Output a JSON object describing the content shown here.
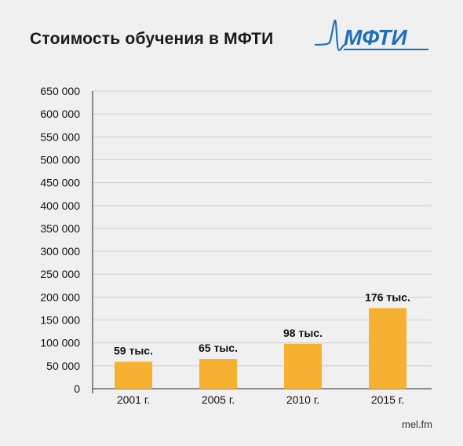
{
  "title": "Стоимость обучения в МФТИ",
  "logo": {
    "text": "МФТИ",
    "icon": "mipt-logo-pulse-icon",
    "color": "#1f6fc0"
  },
  "source": "mel.fm",
  "colors": {
    "bar": "#f6b133",
    "grid": "#cfcfcf",
    "axis": "#222222",
    "text": "#111111"
  },
  "chart_data": {
    "type": "bar",
    "title": "Стоимость обучения в МФТИ",
    "xlabel": "",
    "ylabel": "",
    "categories": [
      "2001 г.",
      "2005 г.",
      "2010 г.",
      "2015 г."
    ],
    "values": [
      59000,
      65000,
      98000,
      176000
    ],
    "data_labels": [
      "59 тыс.",
      "65 тыс.",
      "98 тыс.",
      "176 тыс."
    ],
    "ylim": [
      0,
      650000
    ],
    "yticks": [
      0,
      50000,
      100000,
      150000,
      200000,
      250000,
      300000,
      350000,
      400000,
      450000,
      500000,
      550000,
      600000,
      650000
    ],
    "ytick_labels": [
      "0",
      "50 000",
      "100 000",
      "150 000",
      "200 000",
      "250 000",
      "300 000",
      "350 000",
      "400 000",
      "450 000",
      "500 000",
      "550 000",
      "600 000",
      "650 000"
    ],
    "grid": true,
    "legend": "none"
  }
}
